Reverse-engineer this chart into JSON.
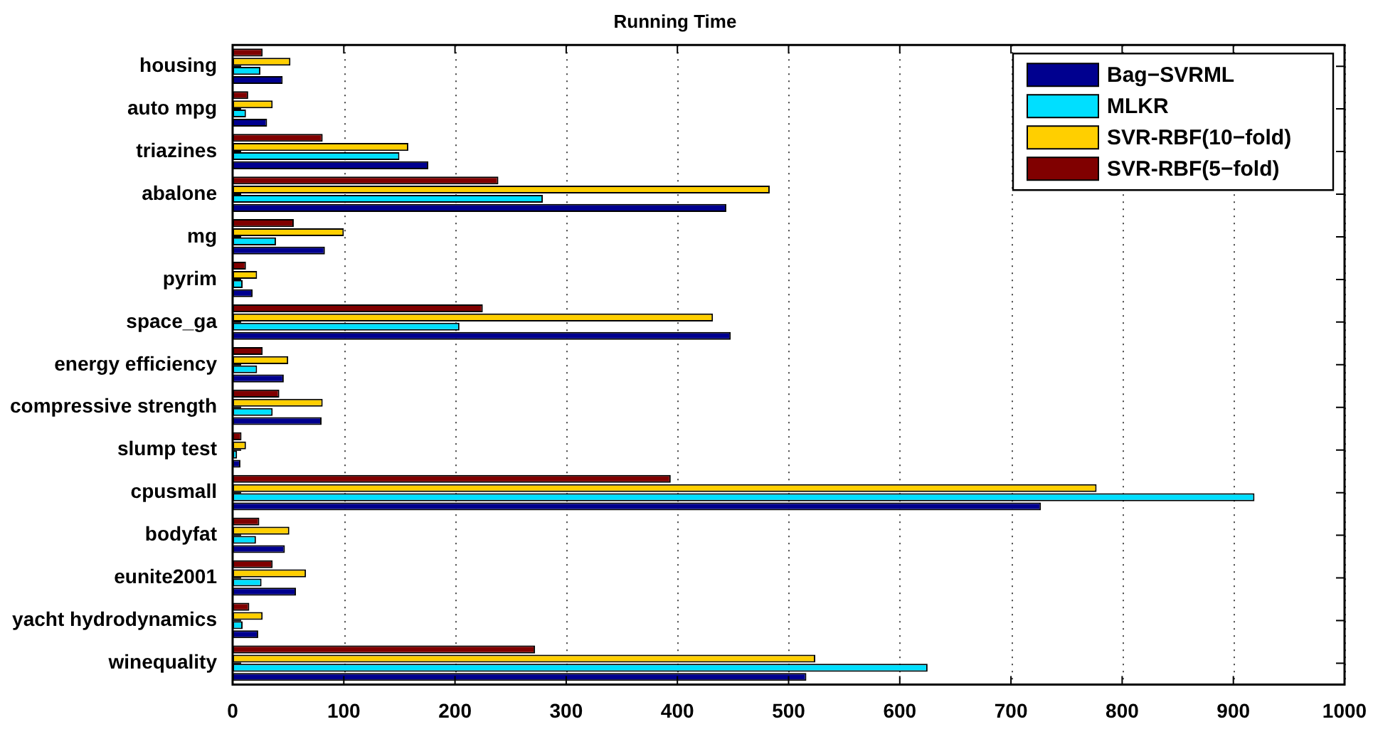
{
  "chart_data": {
    "type": "bar",
    "orientation": "horizontal",
    "title": "Running Time",
    "categories": [
      "housing",
      "auto mpg",
      "triazines",
      "abalone",
      "mg",
      "pyrim",
      "space_ga",
      "energy efficiency",
      "compressive strength",
      "slump test",
      "cpusmall",
      "bodyfat",
      "eunite2001",
      "yacht hydrodynamics",
      "winequality"
    ],
    "series": [
      {
        "name": "Bag−SVRML",
        "color": "#00008f",
        "values": [
          45,
          31,
          176,
          444,
          83,
          18,
          448,
          46,
          80,
          7,
          727,
          47,
          57,
          23,
          516
        ]
      },
      {
        "name": "MLKR",
        "color": "#00dfff",
        "values": [
          25,
          12,
          150,
          279,
          39,
          9,
          204,
          22,
          36,
          4,
          919,
          21,
          26,
          9,
          625
        ]
      },
      {
        "name": "SVR-RBF(10−fold)",
        "color": "#ffcf00",
        "values": [
          52,
          36,
          158,
          483,
          100,
          22,
          432,
          50,
          81,
          12,
          777,
          51,
          66,
          27,
          524
        ]
      },
      {
        "name": "SVR-RBF(5−fold)",
        "color": "#800000",
        "values": [
          27,
          14,
          81,
          239,
          55,
          12,
          225,
          27,
          42,
          8,
          394,
          24,
          36,
          15,
          272
        ]
      }
    ],
    "xlim": [
      0,
      1000
    ],
    "xticks": [
      0,
      100,
      200,
      300,
      400,
      500,
      600,
      700,
      800,
      900,
      1000
    ],
    "grid": "x",
    "legend": "top right"
  }
}
